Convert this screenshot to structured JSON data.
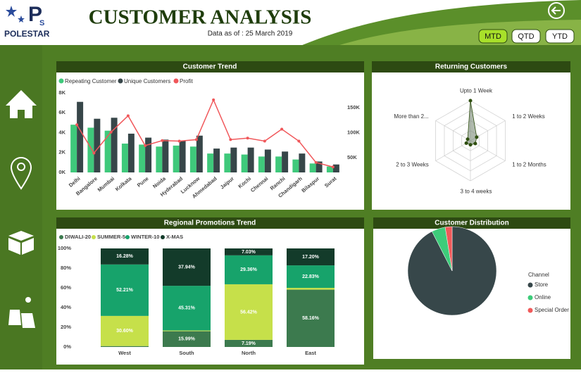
{
  "header": {
    "logo_initials": [
      "P",
      "S"
    ],
    "logo_text": "POLESTAR",
    "title": "CUSTOMER ANALYSIS",
    "date_text": "Data as of : 25 March 2019",
    "buttons": [
      "MTD",
      "QTD",
      "YTD"
    ]
  },
  "chart_data": [
    {
      "type": "combo",
      "title": "Customer Trend",
      "categories": [
        "Delhi",
        "Bangalore",
        "Mumbai",
        "Kolkata",
        "Pune",
        "Noida",
        "Hyderabad",
        "Lucknow",
        "Ahmedabad",
        "Jaipur",
        "Kochi",
        "Chennai",
        "Ranchi",
        "Chandigarh",
        "Bilaspur",
        "Surat"
      ],
      "series": [
        {
          "name": "Repeating Customer",
          "color": "#3fc97b",
          "values": [
            4800,
            4500,
            4200,
            2900,
            2800,
            2600,
            2700,
            2600,
            1900,
            1900,
            1800,
            1600,
            1600,
            1300,
            900,
            600
          ]
        },
        {
          "name": "Unique Customers",
          "color": "#374649",
          "values": [
            7100,
            5400,
            5500,
            3900,
            3500,
            3300,
            3200,
            3700,
            2400,
            2500,
            2500,
            2300,
            2100,
            1900,
            1100,
            800
          ]
        },
        {
          "name": "Profit",
          "color": "#f0575a",
          "axis": "y2",
          "values": [
            116000,
            59000,
            101000,
            134000,
            74000,
            84000,
            83000,
            86000,
            166000,
            86000,
            89000,
            83000,
            107000,
            83000,
            40000,
            31000
          ]
        }
      ],
      "ylim": [
        0,
        8000
      ],
      "yticks": [
        {
          "value": 0,
          "label": "0K"
        },
        {
          "value": 2000,
          "label": "2K"
        },
        {
          "value": 4000,
          "label": "4K"
        },
        {
          "value": 6000,
          "label": "6K"
        },
        {
          "value": 8000,
          "label": "8K"
        }
      ],
      "y2lim": [
        20000,
        180000
      ],
      "y2ticks": [
        {
          "value": 50000,
          "label": "50K"
        },
        {
          "value": 100000,
          "label": "100K"
        },
        {
          "value": 150000,
          "label": "150K"
        }
      ]
    },
    {
      "type": "radar",
      "title": "Returning Customers",
      "categories": [
        "Upto 1 Week",
        "1 to 2 Weeks",
        "1 to 2 Months",
        "3 to 4 weeks",
        "2 to 3 Weeks",
        "More than 2..."
      ],
      "values": [
        100,
        18,
        14,
        10,
        12,
        8
      ],
      "color": "#2f4f10"
    },
    {
      "type": "stacked-bar-100",
      "title": "Regional Promotions Trend",
      "categories": [
        "West",
        "South",
        "North",
        "East"
      ],
      "series": [
        {
          "name": "DIWALI-20",
          "color": "#3c7a4e",
          "values": [
            0.91,
            15.99,
            7.19,
            58.16
          ],
          "value_labels": [
            null,
            "15.99%",
            "7.19%",
            "58.16%"
          ]
        },
        {
          "name": "SUMMER-5",
          "color": "#c6e04a",
          "values": [
            30.6,
            0.76,
            56.42,
            1.81
          ],
          "value_labels": [
            "30.60%",
            null,
            "56.42%",
            null
          ]
        },
        {
          "name": "WINTER-10",
          "color": "#17a36b",
          "values": [
            52.21,
            45.31,
            29.36,
            22.83
          ],
          "value_labels": [
            "52.21%",
            "45.31%",
            "29.36%",
            "22.83%"
          ]
        },
        {
          "name": "X-MAS",
          "color": "#133b2a",
          "values": [
            16.28,
            37.94,
            7.03,
            17.2
          ],
          "value_labels": [
            "16.28%",
            "37.94%",
            "7.03%",
            "17.20%"
          ]
        }
      ],
      "ylim": [
        0,
        100
      ],
      "yticks": [
        {
          "value": 0,
          "label": "0%"
        },
        {
          "value": 20,
          "label": "20%"
        },
        {
          "value": 40,
          "label": "40%"
        },
        {
          "value": 60,
          "label": "60%"
        },
        {
          "value": 80,
          "label": "80%"
        },
        {
          "value": 100,
          "label": "100%"
        }
      ]
    },
    {
      "type": "pie",
      "title": "Customer Distribution",
      "legend_title": "Channel",
      "categories": [
        "Store",
        "Online",
        "Special Order"
      ],
      "values": [
        92.5,
        5,
        2.5
      ],
      "colors": [
        "#37474a",
        "#3dcc7a",
        "#f05a5a"
      ]
    }
  ]
}
